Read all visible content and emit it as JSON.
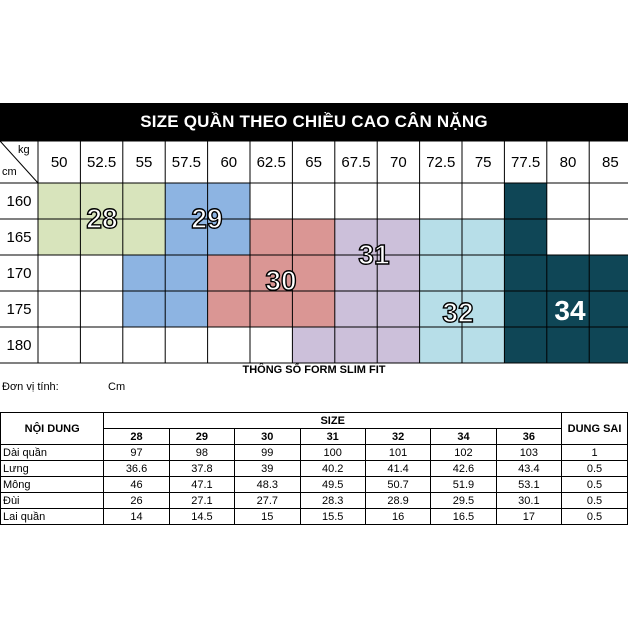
{
  "title": "SIZE QUẦN THEO CHIỀU CAO CÂN NẶNG",
  "axis": {
    "kg": "kg",
    "cm": "cm"
  },
  "weights": [
    "50",
    "52.5",
    "55",
    "57.5",
    "60",
    "62.5",
    "65",
    "67.5",
    "70",
    "72.5",
    "75",
    "77.5",
    "80",
    "85"
  ],
  "heights": [
    "160",
    "165",
    "170",
    "175",
    "180"
  ],
  "size_colors": {
    "28": "#d8e4bc",
    "29": "#8db4e2",
    "30": "#da9694",
    "31": "#ccc0da",
    "32": "#b7dee8",
    "34": "#0f4656"
  },
  "grid": [
    [
      "28",
      "28",
      "28",
      "29",
      "29",
      "",
      "",
      "",
      "",
      "",
      "",
      "34",
      "",
      ""
    ],
    [
      "28",
      "28",
      "28",
      "29",
      "29",
      "30",
      "30",
      "31",
      "31",
      "32",
      "32",
      "34",
      "",
      ""
    ],
    [
      "",
      "",
      "29",
      "29",
      "30",
      "30",
      "30",
      "31",
      "31",
      "32",
      "32",
      "34",
      "34",
      "34"
    ],
    [
      "",
      "",
      "29",
      "29",
      "30",
      "30",
      "30",
      "31",
      "31",
      "32",
      "32",
      "34",
      "34",
      "34"
    ],
    [
      "",
      "",
      "",
      "",
      "",
      "",
      "31",
      "31",
      "31",
      "32",
      "32",
      "34",
      "34",
      "34"
    ]
  ],
  "size_labels": [
    "28",
    "29",
    "30",
    "31",
    "32",
    "34"
  ],
  "spec": {
    "subtitle": "THÔNG SỐ FORM SLIM FIT",
    "unit_label": "Đơn vị tính:",
    "unit_value": "Cm",
    "header_content": "NỘI DUNG",
    "header_size": "SIZE",
    "header_tolerance": "DUNG SAI",
    "sizes": [
      "28",
      "29",
      "30",
      "31",
      "32",
      "34",
      "36"
    ],
    "rows": [
      {
        "label": "Dài quần",
        "values": [
          "97",
          "98",
          "99",
          "100",
          "101",
          "102",
          "103"
        ],
        "tolerance": "1"
      },
      {
        "label": "Lưng",
        "values": [
          "36.6",
          "37.8",
          "39",
          "40.2",
          "41.4",
          "42.6",
          "43.4"
        ],
        "tolerance": "0.5"
      },
      {
        "label": "Mông",
        "values": [
          "46",
          "47.1",
          "48.3",
          "49.5",
          "50.7",
          "51.9",
          "53.1"
        ],
        "tolerance": "0.5"
      },
      {
        "label": "Đùi",
        "values": [
          "26",
          "27.1",
          "27.7",
          "28.3",
          "28.9",
          "29.5",
          "30.1"
        ],
        "tolerance": "0.5"
      },
      {
        "label": "Lai quần",
        "values": [
          "14",
          "14.5",
          "15",
          "15.5",
          "16",
          "16.5",
          "17"
        ],
        "tolerance": "0.5"
      }
    ]
  }
}
